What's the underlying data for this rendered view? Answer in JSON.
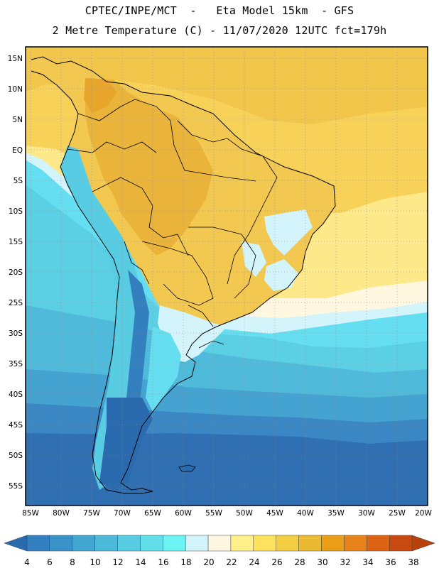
{
  "header": {
    "line1": "CPTEC/INPE/MCT  -   Eta Model 15km  - GFS",
    "line2": "2 Metre Temperature (C) - 11/07/2020 12UTC fct=179h"
  },
  "map": {
    "lat_labels": [
      "15N",
      "10N",
      "5N",
      "EQ",
      "5S",
      "10S",
      "15S",
      "20S",
      "25S",
      "30S",
      "35S",
      "40S",
      "45S",
      "50S",
      "55S"
    ],
    "lon_labels": [
      "85W",
      "80W",
      "75W",
      "70W",
      "65W",
      "60W",
      "55W",
      "50W",
      "45W",
      "40W",
      "35W",
      "30W",
      "25W",
      "20W"
    ]
  },
  "colorbar": {
    "labels": [
      "4",
      "6",
      "8",
      "10",
      "12",
      "14",
      "16",
      "18",
      "20",
      "22",
      "24",
      "26",
      "28",
      "30",
      "32",
      "34",
      "36",
      "38"
    ],
    "colors": [
      "#2a6bb0",
      "#3280bf",
      "#3a93c9",
      "#44a6d2",
      "#4ebada",
      "#58cce2",
      "#62dfea",
      "#6ef3f4",
      "#d4f4fb",
      "#fff7e0",
      "#fff08a",
      "#fde25e",
      "#f4cf44",
      "#ebba33",
      "#e99e16",
      "#e7831a",
      "#dc6414",
      "#c94a10",
      "#b8400a"
    ]
  }
}
